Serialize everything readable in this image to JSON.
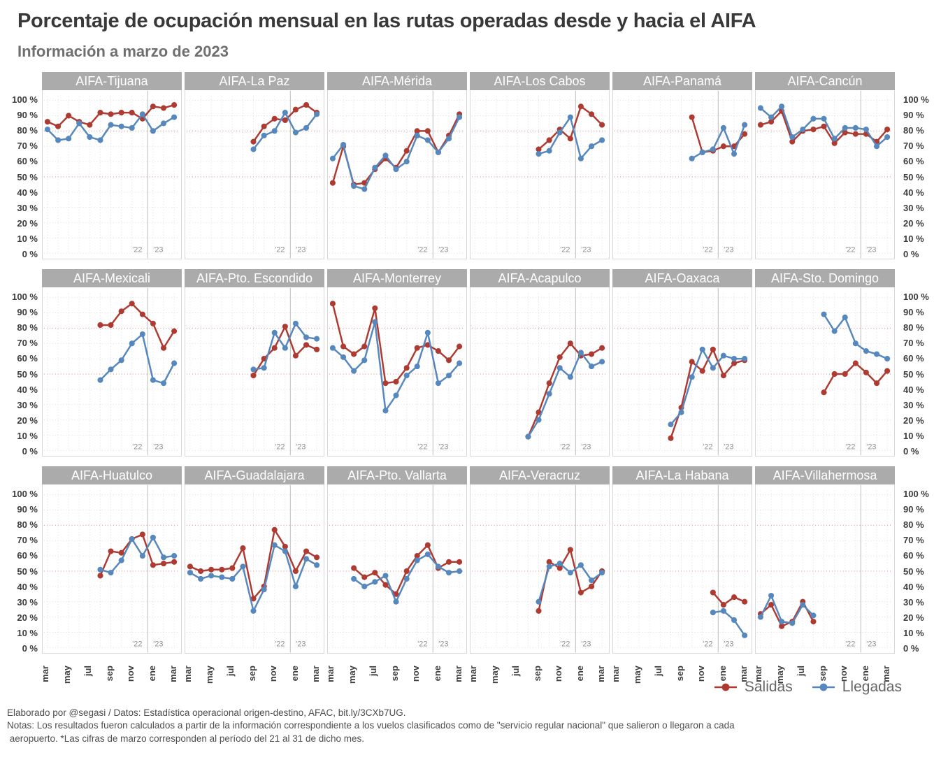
{
  "header": {
    "title": "Porcentaje de ocupación mensual en las rutas operadas desde y hacia el AIFA",
    "subtitle": "Información a marzo de 2023"
  },
  "axis": {
    "y_tick_labels": [
      "100 %",
      "90 %",
      "80 %",
      "70 %",
      "60 %",
      "50 %",
      "40 %",
      "30 %",
      "20 %",
      "10 %",
      "0 %"
    ],
    "y_tick_values": [
      100,
      90,
      80,
      70,
      60,
      50,
      40,
      30,
      20,
      10,
      0
    ],
    "x_tick_labels": [
      "mar",
      "may",
      "jul",
      "sep",
      "nov",
      "ene",
      "mar"
    ],
    "x_tick_month_indices": [
      0,
      2,
      4,
      6,
      8,
      10,
      12
    ],
    "year_labels": [
      "'22",
      "'23"
    ]
  },
  "legend": {
    "items": [
      {
        "label": "Salidas",
        "color": "#ae3b32"
      },
      {
        "label": "Llegadas",
        "color": "#5688be"
      }
    ]
  },
  "colors": {
    "salidas": "#ae3b32",
    "llegadas": "#5688be",
    "panel_header_bg": "#ababab",
    "reference_line": "#e0837a",
    "gridline": "#dcdcdc",
    "year_divider": "#c8c8c8"
  },
  "footer": {
    "lines": [
      "Elaborado por @segasi / Datos: Estadística operacional origen-destino, AFAC, bit.ly/3CXb7UG.",
      "Notas: Los resultados fueron calculados a partir de la información correspondiente a los vuelos clasificados como de \"servicio regular nacional\" que salieron o llegaron a cada",
      " aeropuerto. *Las cifras de marzo corresponden al período del 21 al 31 de dicho mes."
    ]
  },
  "chart_data": {
    "type": "line",
    "months": [
      "mar",
      "abr",
      "may",
      "jun",
      "jul",
      "ago",
      "sep",
      "oct",
      "nov",
      "dic",
      "ene",
      "feb",
      "mar"
    ],
    "ylim": [
      0,
      100
    ],
    "grid": true,
    "reference_lines_pct": [
      50,
      80
    ],
    "legend_position": "bottom-right",
    "series_names": [
      "Salidas",
      "Llegadas"
    ],
    "panels": [
      {
        "title": "AIFA-Tijuana",
        "start_month_index": 0,
        "salidas": [
          86,
          83,
          90,
          86,
          84,
          92,
          91,
          92,
          92,
          88,
          96,
          95,
          97
        ],
        "llegadas": [
          81,
          74,
          75,
          85,
          76,
          74,
          84,
          83,
          82,
          91,
          80,
          85,
          89
        ]
      },
      {
        "title": "AIFA-La Paz",
        "start_month_index": 6,
        "salidas": [
          73,
          83,
          88,
          87,
          94,
          97,
          92
        ],
        "llegadas": [
          68,
          77,
          80,
          92,
          79,
          82,
          91
        ]
      },
      {
        "title": "AIFA-Mérida",
        "start_month_index": 0,
        "salidas": [
          46,
          70,
          45,
          46,
          55,
          62,
          56,
          67,
          80,
          80,
          66,
          77,
          91
        ],
        "llegadas": [
          62,
          71,
          44,
          42,
          56,
          64,
          55,
          60,
          77,
          74,
          66,
          75,
          89
        ]
      },
      {
        "title": "AIFA-Los Cabos",
        "start_month_index": 6,
        "salidas": [
          68,
          74,
          81,
          75,
          96,
          91,
          84
        ],
        "llegadas": [
          65,
          67,
          79,
          89,
          62,
          70,
          74
        ]
      },
      {
        "title": "AIFA-Panamá",
        "start_month_index": 7,
        "salidas": [
          89,
          66,
          67,
          70,
          70,
          78
        ],
        "llegadas": [
          62,
          66,
          68,
          82,
          65,
          84
        ]
      },
      {
        "title": "AIFA-Cancún",
        "start_month_index": 0,
        "salidas": [
          84,
          86,
          93,
          73,
          80,
          81,
          83,
          72,
          79,
          78,
          78,
          73,
          81
        ],
        "llegadas": [
          95,
          89,
          96,
          76,
          81,
          88,
          88,
          75,
          82,
          82,
          81,
          70,
          76
        ]
      },
      {
        "title": "AIFA-Mexicali",
        "start_month_index": 5,
        "salidas": [
          82,
          82,
          91,
          96,
          89,
          83,
          67,
          78
        ],
        "llegadas": [
          46,
          53,
          59,
          70,
          76,
          46,
          44,
          57
        ]
      },
      {
        "title": "AIFA-Pto. Escondido",
        "start_month_index": 6,
        "salidas": [
          49,
          60,
          67,
          81,
          62,
          69,
          66
        ],
        "llegadas": [
          53,
          54,
          77,
          67,
          83,
          74,
          73
        ]
      },
      {
        "title": "AIFA-Monterrey",
        "start_month_index": 0,
        "salidas": [
          96,
          68,
          63,
          68,
          93,
          44,
          45,
          54,
          67,
          69,
          65,
          59,
          68
        ],
        "llegadas": [
          67,
          61,
          52,
          59,
          84,
          26,
          36,
          49,
          55,
          77,
          44,
          49,
          57
        ]
      },
      {
        "title": "AIFA-Acapulco",
        "start_month_index": 5,
        "salidas": [
          9,
          25,
          44,
          61,
          70,
          62,
          63,
          67
        ],
        "llegadas": [
          9,
          20,
          37,
          54,
          48,
          64,
          55,
          58
        ]
      },
      {
        "title": "AIFA-Oaxaca",
        "start_month_index": 5,
        "salidas": [
          8,
          28,
          58,
          52,
          66,
          49,
          57,
          59
        ],
        "llegadas": [
          17,
          25,
          48,
          66,
          54,
          62,
          60,
          60
        ]
      },
      {
        "title": "AIFA-Sto. Domingo",
        "start_month_index": 6,
        "salidas": [
          38,
          50,
          50,
          57,
          51,
          44,
          52
        ],
        "llegadas": [
          89,
          78,
          87,
          70,
          65,
          63,
          60
        ]
      },
      {
        "title": "AIFA-Huatulco",
        "start_month_index": 5,
        "salidas": [
          47,
          63,
          62,
          71,
          74,
          54,
          55,
          56
        ],
        "llegadas": [
          51,
          49,
          57,
          71,
          60,
          72,
          59,
          60
        ]
      },
      {
        "title": "AIFA-Guadalajara",
        "start_month_index": 0,
        "salidas": [
          53,
          50,
          51,
          51,
          52,
          65,
          32,
          40,
          77,
          66,
          50,
          63,
          59
        ],
        "llegadas": [
          49,
          45,
          47,
          46,
          45,
          53,
          24,
          38,
          67,
          63,
          40,
          58,
          54
        ]
      },
      {
        "title": "AIFA-Pto. Vallarta",
        "start_month_index": 2,
        "salidas": [
          52,
          46,
          49,
          41,
          35,
          50,
          60,
          67,
          52,
          56,
          56
        ],
        "llegadas": [
          45,
          40,
          43,
          47,
          30,
          45,
          57,
          61,
          53,
          49,
          50
        ]
      },
      {
        "title": "AIFA-Veracruz",
        "start_month_index": 6,
        "salidas": [
          24,
          56,
          52,
          64,
          36,
          40,
          50
        ],
        "llegadas": [
          30,
          53,
          55,
          49,
          54,
          44,
          49
        ]
      },
      {
        "title": "AIFA-La Habana",
        "start_month_index": 9,
        "salidas": [
          36,
          28,
          33,
          30
        ],
        "llegadas": [
          23,
          24,
          18,
          8
        ]
      },
      {
        "title": "AIFA-Villahermosa",
        "start_month_index": 0,
        "salidas": [
          22,
          28,
          14,
          17,
          30,
          17
        ],
        "llegadas": [
          20,
          34,
          17,
          16,
          28,
          21
        ]
      }
    ]
  }
}
